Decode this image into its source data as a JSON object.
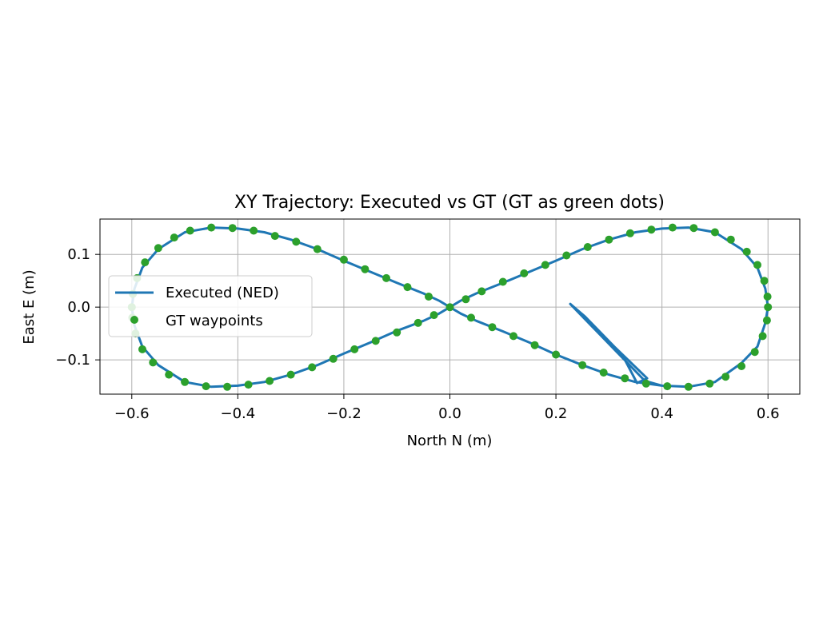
{
  "chart_data": {
    "type": "line",
    "title": "XY Trajectory: Executed vs GT (GT as green dots)",
    "xlabel": "North N (m)",
    "ylabel": "East E (m)",
    "xlim": [
      -0.66,
      0.66
    ],
    "ylim": [
      -0.165,
      0.167
    ],
    "xticks": [
      -0.6,
      -0.4,
      -0.2,
      0.0,
      0.2,
      0.4,
      0.6
    ],
    "xtick_labels": [
      "−0.6",
      "−0.4",
      "−0.2",
      "0.0",
      "0.2",
      "0.4",
      "0.6"
    ],
    "yticks": [
      -0.1,
      0.0,
      0.1
    ],
    "ytick_labels": [
      "−0.1",
      "0.0",
      "0.1"
    ],
    "grid": true,
    "legend_position": "center-left",
    "colors": {
      "executed": "#1f77b4",
      "gt": "#2ca02c"
    },
    "series": [
      {
        "name": "Executed (NED)",
        "style": "line",
        "points": [
          [
            0.227,
            0.006
          ],
          [
            0.33,
            -0.1
          ],
          [
            0.353,
            -0.144
          ],
          [
            0.372,
            -0.135
          ],
          [
            0.31,
            -0.075
          ],
          [
            0.255,
            -0.018
          ],
          [
            0.227,
            0.006
          ],
          [
            0.368,
            -0.14
          ],
          [
            0.4,
            -0.149
          ],
          [
            0.45,
            -0.151
          ],
          [
            0.5,
            -0.142
          ],
          [
            0.55,
            -0.106
          ],
          [
            0.58,
            -0.075
          ],
          [
            0.595,
            -0.03
          ],
          [
            0.6,
            0.0
          ],
          [
            0.595,
            0.035
          ],
          [
            0.58,
            0.075
          ],
          [
            0.55,
            0.11
          ],
          [
            0.5,
            0.142
          ],
          [
            0.45,
            0.151
          ],
          [
            0.4,
            0.149
          ],
          [
            0.35,
            0.142
          ],
          [
            0.3,
            0.128
          ],
          [
            0.25,
            0.11
          ],
          [
            0.2,
            0.088
          ],
          [
            0.15,
            0.067
          ],
          [
            0.1,
            0.046
          ],
          [
            0.05,
            0.026
          ],
          [
            0.02,
            0.012
          ],
          [
            0.0,
            0.0
          ],
          [
            -0.02,
            -0.012
          ],
          [
            -0.05,
            -0.026
          ],
          [
            -0.1,
            -0.045
          ],
          [
            -0.15,
            -0.067
          ],
          [
            -0.2,
            -0.088
          ],
          [
            -0.25,
            -0.11
          ],
          [
            -0.3,
            -0.128
          ],
          [
            -0.35,
            -0.142
          ],
          [
            -0.4,
            -0.149
          ],
          [
            -0.45,
            -0.151
          ],
          [
            -0.5,
            -0.142
          ],
          [
            -0.55,
            -0.11
          ],
          [
            -0.58,
            -0.075
          ],
          [
            -0.595,
            -0.035
          ],
          [
            -0.6,
            0.0
          ],
          [
            -0.595,
            0.035
          ],
          [
            -0.58,
            0.075
          ],
          [
            -0.55,
            0.11
          ],
          [
            -0.5,
            0.142
          ],
          [
            -0.45,
            0.151
          ],
          [
            -0.4,
            0.149
          ],
          [
            -0.35,
            0.142
          ],
          [
            -0.3,
            0.128
          ],
          [
            -0.25,
            0.11
          ],
          [
            -0.2,
            0.088
          ],
          [
            -0.15,
            0.067
          ],
          [
            -0.1,
            0.046
          ],
          [
            -0.05,
            0.026
          ],
          [
            -0.02,
            0.012
          ],
          [
            0.0,
            0.0
          ],
          [
            0.02,
            -0.012
          ],
          [
            0.05,
            -0.026
          ],
          [
            0.1,
            -0.046
          ],
          [
            0.15,
            -0.067
          ],
          [
            0.2,
            -0.09
          ],
          [
            0.25,
            -0.11
          ],
          [
            0.3,
            -0.128
          ],
          [
            0.35,
            -0.142
          ],
          [
            0.4,
            -0.149
          ]
        ]
      },
      {
        "name": "GT waypoints",
        "style": "scatter",
        "points": [
          [
            0.0,
            0.0
          ],
          [
            0.03,
            0.015
          ],
          [
            0.06,
            0.03
          ],
          [
            0.1,
            0.048
          ],
          [
            0.14,
            0.064
          ],
          [
            0.18,
            0.08
          ],
          [
            0.22,
            0.098
          ],
          [
            0.26,
            0.114
          ],
          [
            0.3,
            0.128
          ],
          [
            0.34,
            0.14
          ],
          [
            0.38,
            0.147
          ],
          [
            0.42,
            0.151
          ],
          [
            0.46,
            0.15
          ],
          [
            0.5,
            0.142
          ],
          [
            0.53,
            0.128
          ],
          [
            0.56,
            0.105
          ],
          [
            0.58,
            0.08
          ],
          [
            0.593,
            0.05
          ],
          [
            0.599,
            0.02
          ],
          [
            0.6,
            0.0
          ],
          [
            0.598,
            -0.025
          ],
          [
            0.59,
            -0.055
          ],
          [
            0.575,
            -0.085
          ],
          [
            0.55,
            -0.112
          ],
          [
            0.52,
            -0.132
          ],
          [
            0.49,
            -0.145
          ],
          [
            0.45,
            -0.151
          ],
          [
            0.41,
            -0.15
          ],
          [
            0.37,
            -0.145
          ],
          [
            0.33,
            -0.135
          ],
          [
            0.29,
            -0.124
          ],
          [
            0.25,
            -0.11
          ],
          [
            0.2,
            -0.09
          ],
          [
            0.16,
            -0.072
          ],
          [
            0.12,
            -0.055
          ],
          [
            0.08,
            -0.038
          ],
          [
            0.04,
            -0.02
          ],
          [
            -0.03,
            -0.015
          ],
          [
            -0.06,
            -0.03
          ],
          [
            -0.1,
            -0.048
          ],
          [
            -0.14,
            -0.064
          ],
          [
            -0.18,
            -0.08
          ],
          [
            -0.22,
            -0.098
          ],
          [
            -0.26,
            -0.114
          ],
          [
            -0.3,
            -0.128
          ],
          [
            -0.34,
            -0.14
          ],
          [
            -0.38,
            -0.147
          ],
          [
            -0.42,
            -0.151
          ],
          [
            -0.46,
            -0.15
          ],
          [
            -0.5,
            -0.142
          ],
          [
            -0.53,
            -0.128
          ],
          [
            -0.56,
            -0.105
          ],
          [
            -0.58,
            -0.08
          ],
          [
            -0.593,
            -0.05
          ],
          [
            -0.599,
            -0.02
          ],
          [
            -0.6,
            0.0
          ],
          [
            -0.598,
            0.025
          ],
          [
            -0.59,
            0.055
          ],
          [
            -0.575,
            0.085
          ],
          [
            -0.55,
            0.112
          ],
          [
            -0.52,
            0.132
          ],
          [
            -0.49,
            0.145
          ],
          [
            -0.45,
            0.151
          ],
          [
            -0.41,
            0.15
          ],
          [
            -0.37,
            0.145
          ],
          [
            -0.33,
            0.135
          ],
          [
            -0.29,
            0.124
          ],
          [
            -0.25,
            0.11
          ],
          [
            -0.2,
            0.09
          ],
          [
            -0.16,
            0.072
          ],
          [
            -0.12,
            0.055
          ],
          [
            -0.08,
            0.038
          ],
          [
            -0.04,
            0.02
          ]
        ]
      }
    ]
  }
}
